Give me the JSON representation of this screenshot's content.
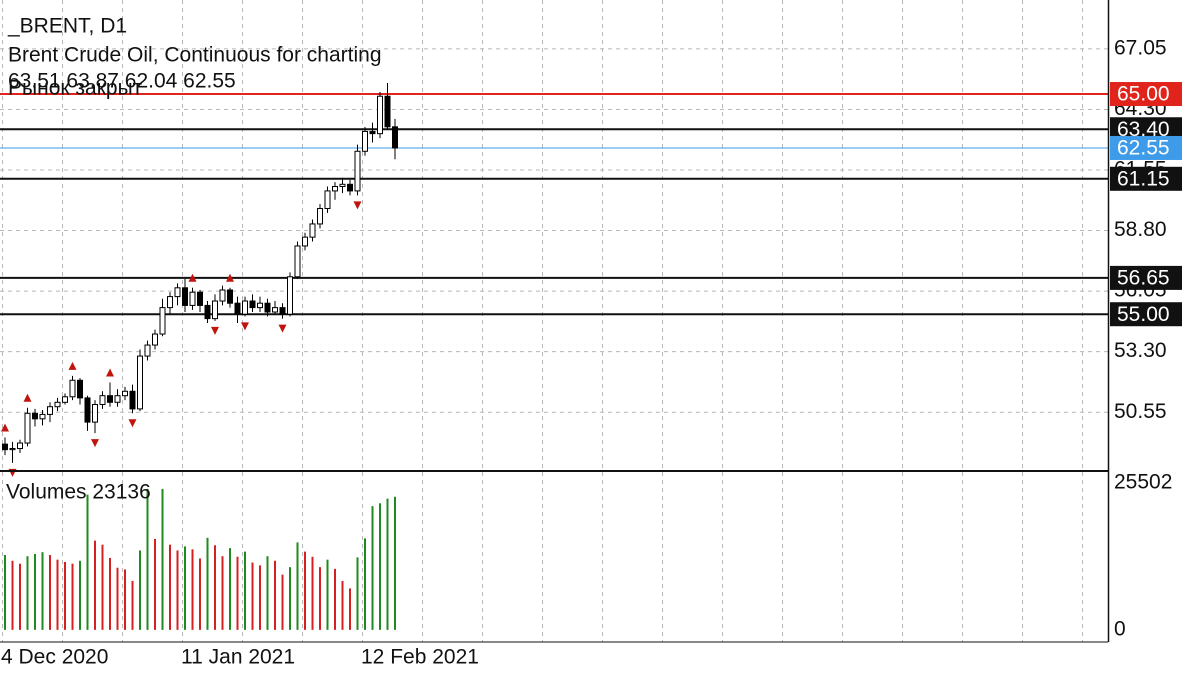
{
  "chart_data": [
    {
      "type": "candlestick",
      "title": "_BRENT, D1",
      "subtitle": "Brent Crude Oil, Continuous for charting",
      "ohlc_label": "63.51 63.87 62.04 62.55",
      "status": "Рынок закрыт",
      "categories": [
        "4 Dec 2020",
        null,
        null,
        null,
        null,
        null,
        null,
        null,
        null,
        null,
        null,
        null,
        null,
        null,
        null,
        null,
        null,
        null,
        null,
        null,
        null,
        null,
        null,
        null,
        "11 Jan 2021",
        null,
        null,
        null,
        null,
        null,
        null,
        null,
        null,
        null,
        null,
        null,
        null,
        null,
        null,
        null,
        null,
        null,
        null,
        null,
        null,
        null,
        null,
        null,
        "12 Feb 2021",
        null,
        null,
        null,
        null
      ],
      "open": [
        49.1,
        48.85,
        48.9,
        49.15,
        50.5,
        50.25,
        50.45,
        50.8,
        51.0,
        51.25,
        52.0,
        51.2,
        50.1,
        50.9,
        51.3,
        51.0,
        51.3,
        51.5,
        50.7,
        53.1,
        53.6,
        54.1,
        55.3,
        55.8,
        56.2,
        55.4,
        56.0,
        55.4,
        54.8,
        55.6,
        56.1,
        55.5,
        55.0,
        55.6,
        55.3,
        55.5,
        55.1,
        55.3,
        55.0,
        56.7,
        58.1,
        58.5,
        59.1,
        59.8,
        60.6,
        60.8,
        60.9,
        60.6,
        62.4,
        63.3,
        63.2,
        64.9,
        63.51
      ],
      "high": [
        49.4,
        49.2,
        49.3,
        50.75,
        50.7,
        50.65,
        51.0,
        51.2,
        51.4,
        52.2,
        52.1,
        51.3,
        51.1,
        51.5,
        51.9,
        51.6,
        51.7,
        51.8,
        53.4,
        53.8,
        54.3,
        55.7,
        56.0,
        56.4,
        56.6,
        56.2,
        56.1,
        55.6,
        55.9,
        56.3,
        56.2,
        55.8,
        55.8,
        55.9,
        55.8,
        55.7,
        55.6,
        55.5,
        56.9,
        58.3,
        58.7,
        59.3,
        60.0,
        60.8,
        61.0,
        61.2,
        61.1,
        62.7,
        63.5,
        63.7,
        65.1,
        65.5,
        63.87
      ],
      "low": [
        48.6,
        48.25,
        48.7,
        49.0,
        49.9,
        49.95,
        50.1,
        50.6,
        50.9,
        51.1,
        50.9,
        49.7,
        49.6,
        50.7,
        50.8,
        50.8,
        51.1,
        50.5,
        50.6,
        52.9,
        53.4,
        54.0,
        55.0,
        55.4,
        55.1,
        55.2,
        55.1,
        54.6,
        54.7,
        55.4,
        55.3,
        54.6,
        54.9,
        55.1,
        55.1,
        54.9,
        55.0,
        54.8,
        54.9,
        56.6,
        57.9,
        58.3,
        58.9,
        59.6,
        60.2,
        60.5,
        60.4,
        60.4,
        62.2,
        62.8,
        63.0,
        63.4,
        62.04
      ],
      "close": [
        48.85,
        48.9,
        49.15,
        50.5,
        50.25,
        50.45,
        50.8,
        51.0,
        51.25,
        52.0,
        51.2,
        50.1,
        50.9,
        51.3,
        51.0,
        51.3,
        51.5,
        50.7,
        53.1,
        53.6,
        54.1,
        55.3,
        55.8,
        56.2,
        55.4,
        56.0,
        55.4,
        54.8,
        55.6,
        56.1,
        55.5,
        55.0,
        55.6,
        55.3,
        55.5,
        55.1,
        55.3,
        55.0,
        56.7,
        58.1,
        58.5,
        59.1,
        59.8,
        60.6,
        60.8,
        60.9,
        60.6,
        62.4,
        63.3,
        63.2,
        64.9,
        63.51,
        62.55
      ],
      "fractals_up": [
        0,
        3,
        9,
        14,
        25,
        30
      ],
      "fractals_down": [
        1,
        12,
        17,
        28,
        32,
        37,
        47
      ],
      "fractal_color": "#c0150f",
      "up_color": "#ffffff",
      "down_color": "#000000",
      "levels": [
        {
          "value": 65,
          "label": "65.00",
          "color": "#e0241b"
        },
        {
          "value": 63.4,
          "label": "63.40",
          "color": "#111111"
        },
        {
          "value": 62.55,
          "label": "62.55",
          "color": "#3d9be9"
        },
        {
          "value": 61.15,
          "label": "61.15",
          "color": "#111111"
        },
        {
          "value": 56.65,
          "label": "56.65",
          "color": "#111111"
        },
        {
          "value": 55,
          "label": "55.00",
          "color": "#111111"
        }
      ],
      "ylim": [
        47.88,
        69.27
      ],
      "yticks": [
        {
          "value": 67.05,
          "label": "67.05"
        },
        {
          "value": 64.3,
          "label": "64.30"
        },
        {
          "value": 61.55,
          "label": "61.55"
        },
        {
          "value": 58.8,
          "label": "58.80"
        },
        {
          "value": 56.05,
          "label": "56.05"
        },
        {
          "value": 53.3,
          "label": "53.30"
        },
        {
          "value": 50.55,
          "label": "50.55"
        }
      ],
      "grid": true
    },
    {
      "type": "volume",
      "title": "Volumes 23136",
      "values": [
        13000,
        12000,
        11500,
        12800,
        13200,
        13500,
        13000,
        12200,
        11800,
        11500,
        12000,
        23500,
        15500,
        14800,
        12500,
        10800,
        10500,
        8500,
        13800,
        24500,
        15800,
        24500,
        14800,
        13800,
        14500,
        14000,
        12400,
        16000,
        14700,
        12800,
        14200,
        12700,
        13600,
        11700,
        11200,
        12800,
        12000,
        9600,
        10900,
        15200,
        13600,
        12700,
        10900,
        12200,
        10600,
        8500,
        7200,
        12600,
        15900,
        21500,
        22000,
        22800,
        23136
      ],
      "up_color": "#1f8a1f",
      "down_color": "#d42020",
      "ylim": [
        -2110,
        27260
      ],
      "yticks": [
        25502,
        0
      ]
    }
  ]
}
